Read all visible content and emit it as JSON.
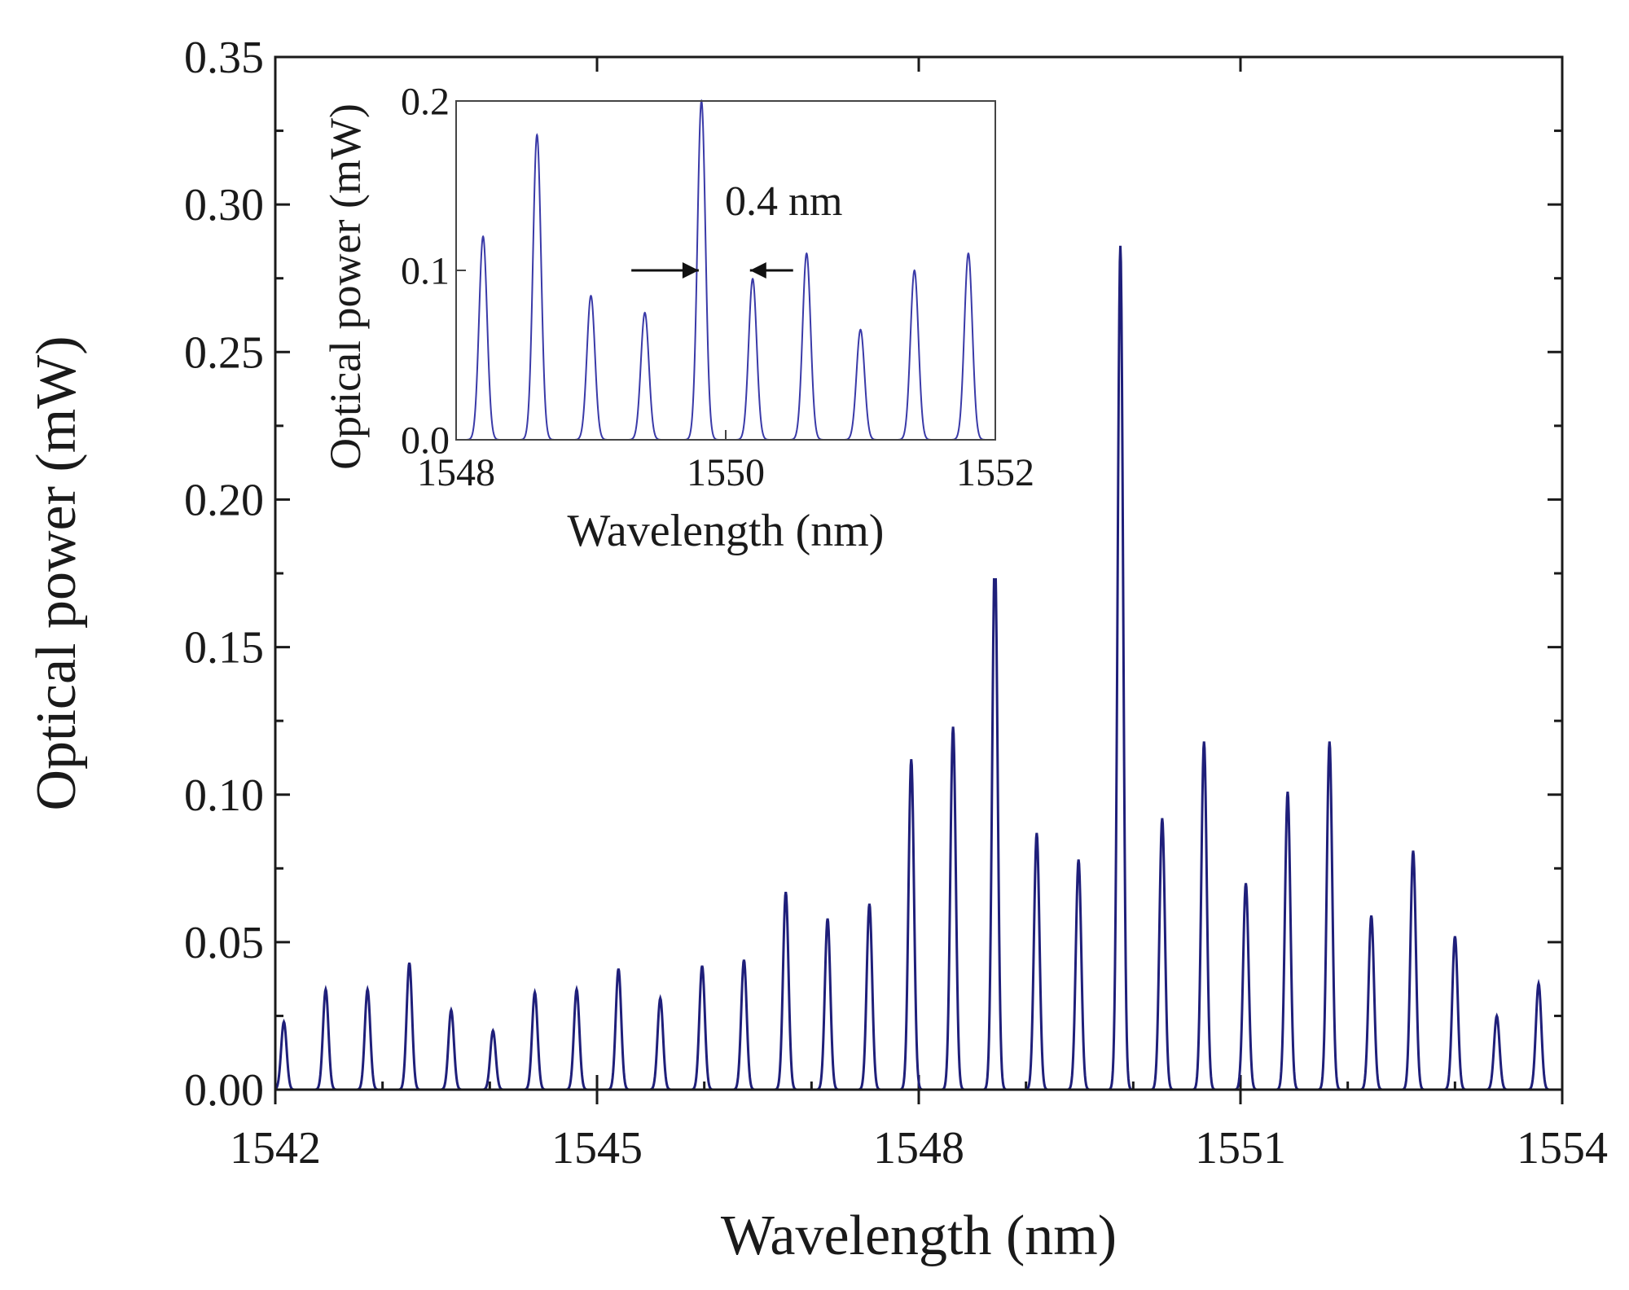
{
  "chart_data": [
    {
      "type": "line",
      "role": "main",
      "xlabel": "Wavelength (nm)",
      "ylabel": "Optical power (mW)",
      "xlim": [
        1542,
        1554
      ],
      "ylim": [
        0,
        0.35
      ],
      "xticks": [
        1542,
        1545,
        1548,
        1551,
        1554
      ],
      "xtick_labels": [
        "1542",
        "1545",
        "1548",
        "1551",
        "1554"
      ],
      "yticks": [
        0,
        0.05,
        0.1,
        0.15,
        0.2,
        0.25,
        0.3,
        0.35
      ],
      "ytick_labels": [
        "0.00",
        "0.05",
        "0.10",
        "0.15",
        "0.20",
        "0.25",
        "0.30",
        "0.35"
      ],
      "line_color": "#1f1f7a",
      "peak_fwhm_nm": 0.06,
      "peaks": [
        {
          "x": 1542.08,
          "y": 0.023
        },
        {
          "x": 1542.47,
          "y": 0.034
        },
        {
          "x": 1542.86,
          "y": 0.034
        },
        {
          "x": 1543.25,
          "y": 0.043
        },
        {
          "x": 1543.64,
          "y": 0.027
        },
        {
          "x": 1544.03,
          "y": 0.02
        },
        {
          "x": 1544.42,
          "y": 0.033
        },
        {
          "x": 1544.81,
          "y": 0.034
        },
        {
          "x": 1545.2,
          "y": 0.041
        },
        {
          "x": 1545.59,
          "y": 0.031
        },
        {
          "x": 1545.98,
          "y": 0.042
        },
        {
          "x": 1546.37,
          "y": 0.044
        },
        {
          "x": 1546.76,
          "y": 0.067
        },
        {
          "x": 1547.15,
          "y": 0.058
        },
        {
          "x": 1547.54,
          "y": 0.063
        },
        {
          "x": 1547.93,
          "y": 0.112
        },
        {
          "x": 1548.32,
          "y": 0.123
        },
        {
          "x": 1548.71,
          "y": 0.182
        },
        {
          "x": 1549.1,
          "y": 0.087
        },
        {
          "x": 1549.49,
          "y": 0.078
        },
        {
          "x": 1549.88,
          "y": 0.286
        },
        {
          "x": 1550.27,
          "y": 0.092
        },
        {
          "x": 1550.66,
          "y": 0.118
        },
        {
          "x": 1551.05,
          "y": 0.07
        },
        {
          "x": 1551.44,
          "y": 0.101
        },
        {
          "x": 1551.83,
          "y": 0.118
        },
        {
          "x": 1552.22,
          "y": 0.059
        },
        {
          "x": 1552.61,
          "y": 0.081
        },
        {
          "x": 1553.0,
          "y": 0.052
        },
        {
          "x": 1553.39,
          "y": 0.025
        },
        {
          "x": 1553.78,
          "y": 0.036
        }
      ]
    },
    {
      "type": "line",
      "role": "inset",
      "xlabel": "Wavelength (nm)",
      "ylabel": "Optical power (mW)",
      "xlim": [
        1548,
        1552
      ],
      "ylim": [
        0,
        0.2
      ],
      "xticks": [
        1548,
        1550,
        1552
      ],
      "xtick_labels": [
        "1548",
        "1550",
        "1552"
      ],
      "yticks": [
        0,
        0.1,
        0.2
      ],
      "ytick_labels": [
        "0.0",
        "0.1",
        "0.2"
      ],
      "line_color": "#3a3aa8",
      "peak_fwhm_nm": 0.07,
      "annotation": "0.4 nm",
      "annotation_arrows": [
        {
          "from_x": 1549.3,
          "to_x": 1549.8,
          "y": 0.1
        },
        {
          "from_x": 1550.5,
          "to_x": 1550.18,
          "y": 0.1
        }
      ],
      "peaks": [
        {
          "x": 1548.2,
          "y": 0.12
        },
        {
          "x": 1548.6,
          "y": 0.18
        },
        {
          "x": 1549.0,
          "y": 0.085
        },
        {
          "x": 1549.4,
          "y": 0.075
        },
        {
          "x": 1549.82,
          "y": 0.2
        },
        {
          "x": 1550.2,
          "y": 0.095
        },
        {
          "x": 1550.6,
          "y": 0.11
        },
        {
          "x": 1551.0,
          "y": 0.065
        },
        {
          "x": 1551.4,
          "y": 0.1
        },
        {
          "x": 1551.8,
          "y": 0.11
        }
      ]
    }
  ]
}
